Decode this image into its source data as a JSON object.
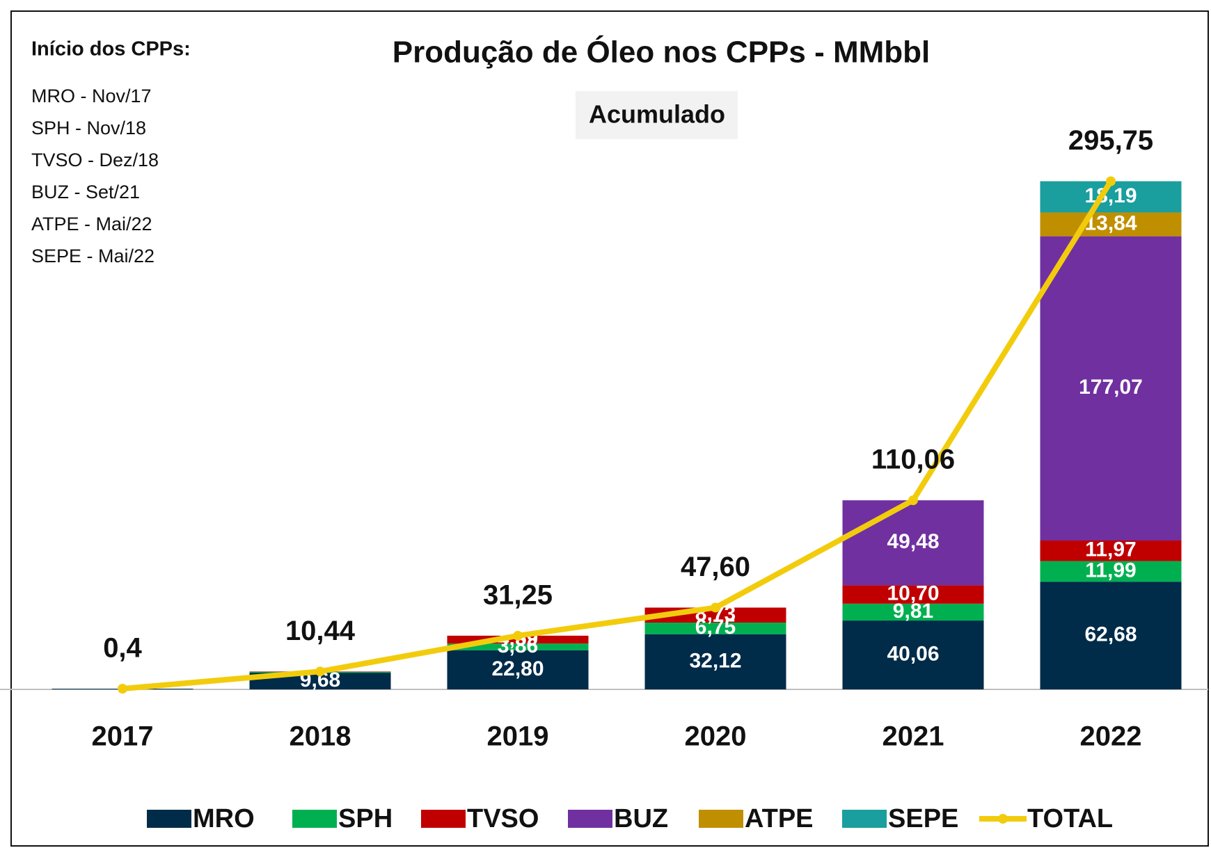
{
  "chart_data": {
    "type": "bar",
    "stacked": true,
    "title": "Produção de Óleo nos CPPs - MMbbl",
    "subtitle": "Acumulado",
    "notes_title": "Início dos CPPs:",
    "notes": [
      "MRO  - Nov/17",
      "SPH   - Nov/18",
      "TVSO - Dez/18",
      "BUZ  - Set/21",
      "ATPE  - Mai/22",
      "SEPE  - Mai/22"
    ],
    "categories": [
      "2017",
      "2018",
      "2019",
      "2020",
      "2021",
      "2022"
    ],
    "ylim": [
      0,
      300
    ],
    "series": [
      {
        "name": "MRO",
        "color": "#002b49",
        "values": [
          0.4,
          9.68,
          22.8,
          32.12,
          40.06,
          62.68
        ],
        "value_labels": [
          null,
          "9,68",
          "22,80",
          "32,12",
          "40,06",
          "62,68"
        ]
      },
      {
        "name": "SPH",
        "color": "#00b050",
        "values": [
          null,
          0.54,
          3.86,
          6.75,
          9.81,
          11.99
        ],
        "value_labels": [
          null,
          null,
          "3,86",
          "6,75",
          "9,81",
          "11,99"
        ]
      },
      {
        "name": "TVSO",
        "color": "#c00000",
        "values": [
          null,
          0.22,
          4.59,
          8.73,
          10.7,
          11.97
        ],
        "value_labels": [
          null,
          null,
          "4,59",
          "8,73",
          "10,70",
          "11,97"
        ]
      },
      {
        "name": "BUZ",
        "color": "#7030a0",
        "values": [
          null,
          null,
          null,
          null,
          49.48,
          177.07
        ],
        "value_labels": [
          null,
          null,
          null,
          null,
          "49,48",
          "177,07"
        ]
      },
      {
        "name": "ATPE",
        "color": "#bf8f00",
        "values": [
          null,
          null,
          null,
          null,
          null,
          13.84
        ],
        "value_labels": [
          null,
          null,
          null,
          null,
          null,
          "13,84"
        ]
      },
      {
        "name": "SEPE",
        "color": "#1a9e9e",
        "values": [
          null,
          null,
          null,
          null,
          null,
          18.19
        ],
        "value_labels": [
          null,
          null,
          null,
          null,
          null,
          "18,19"
        ]
      }
    ],
    "total": {
      "name": "TOTAL",
      "color": "#f2cc0c",
      "values": [
        0.4,
        10.44,
        31.25,
        47.6,
        110.06,
        295.75
      ],
      "value_labels": [
        "0,4",
        "10,44",
        "31,25",
        "47,60",
        "110,06",
        "295,75"
      ]
    }
  }
}
